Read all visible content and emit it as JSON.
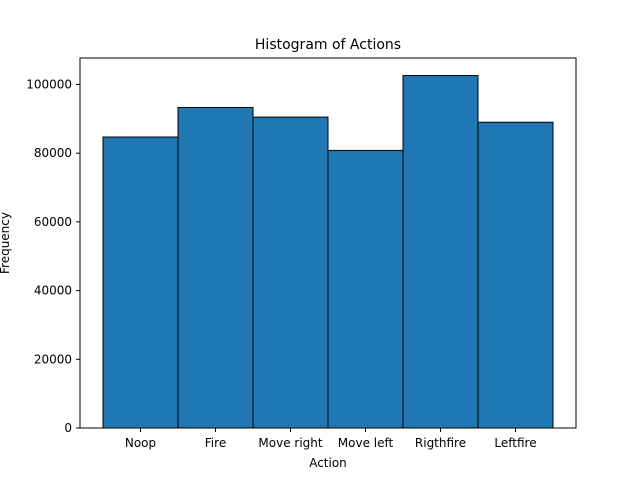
{
  "chart_data": {
    "type": "bar",
    "title": "Histogram of Actions",
    "xlabel": "Action",
    "ylabel": "Frequency",
    "categories": [
      "Noop",
      "Fire",
      "Move right",
      "Move left",
      "Rigthfire",
      "Leftfire"
    ],
    "values": [
      84700,
      93300,
      90500,
      80800,
      102600,
      89000
    ],
    "ylim": [
      0,
      107700
    ],
    "yticks": [
      0,
      20000,
      40000,
      60000,
      80000,
      100000
    ],
    "ytick_labels": [
      "0",
      "20000",
      "40000",
      "60000",
      "80000",
      "100000"
    ],
    "bar_color": "#1f77b4",
    "edge_color": "#000000",
    "grid": false,
    "legend": "none"
  }
}
